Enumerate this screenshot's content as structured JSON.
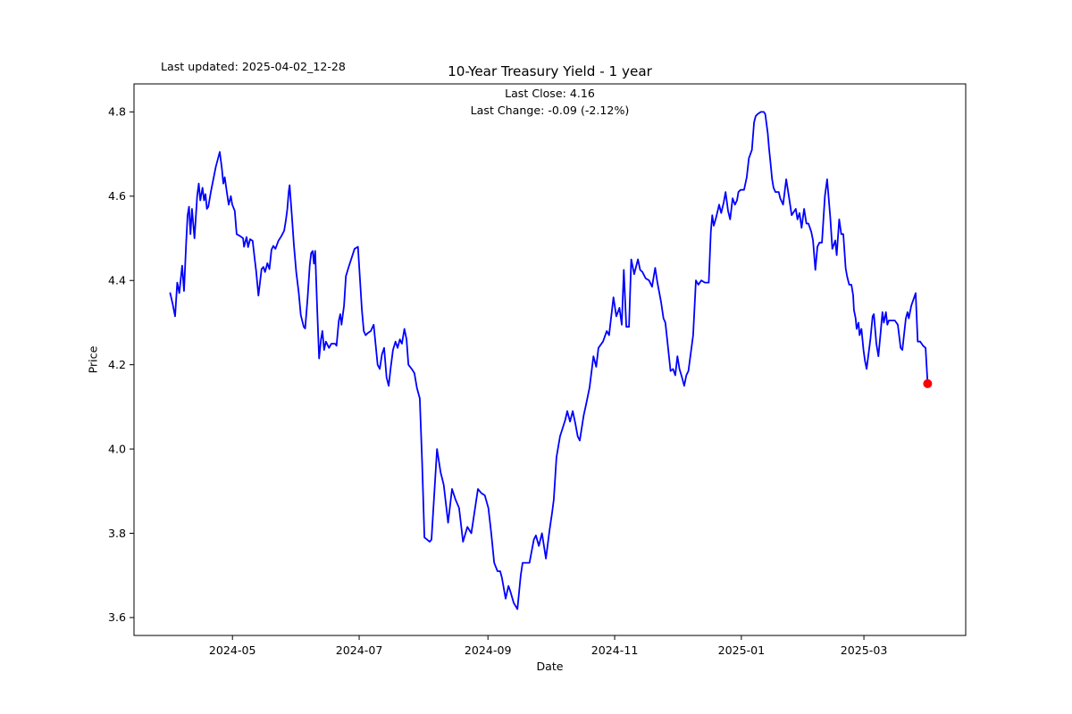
{
  "header": {
    "last_updated": "Last updated: 2025-04-02_12-28",
    "title": "10-Year Treasury Yield - 1 year",
    "subtitle_close": "Last Close: 4.16",
    "subtitle_change": "Last Change: -0.09 (-2.12%)"
  },
  "chart_data": {
    "type": "line",
    "title": "10-Year Treasury Yield - 1 year",
    "xlabel": "Date",
    "ylabel": "Price",
    "last_close": 4.16,
    "last_change": "-0.09 (-2.12%)",
    "line_color": "#0000ff",
    "last_point_color": "#ff0000",
    "background": "#ffffff",
    "grid": false,
    "legend": false,
    "x_unit": "days since 2024-04-01",
    "x_start_date": "2024-04-01",
    "xlim_days": [
      -17.4,
      383.0
    ],
    "ylim": [
      3.5575,
      4.8665
    ],
    "yticks": [
      {
        "v": 3.6,
        "label": "3.6"
      },
      {
        "v": 3.8,
        "label": "3.8"
      },
      {
        "v": 4.0,
        "label": "4.0"
      },
      {
        "v": 4.2,
        "label": "4.2"
      },
      {
        "v": 4.4,
        "label": "4.4"
      },
      {
        "v": 4.6,
        "label": "4.6"
      },
      {
        "v": 4.8,
        "label": "4.8"
      }
    ],
    "xticks": [
      {
        "d": 30,
        "label": "2024-05"
      },
      {
        "d": 91,
        "label": "2024-07"
      },
      {
        "d": 153,
        "label": "2024-09"
      },
      {
        "d": 214,
        "label": "2024-11"
      },
      {
        "d": 275,
        "label": "2025-01"
      },
      {
        "d": 334,
        "label": "2025-03"
      }
    ],
    "points": [
      [
        0,
        4.37
      ],
      [
        1.2,
        4.345
      ],
      [
        2.4,
        4.315
      ],
      [
        3.4,
        4.395
      ],
      [
        4.4,
        4.37
      ],
      [
        5.8,
        4.435
      ],
      [
        6.7,
        4.375
      ],
      [
        7.7,
        4.49
      ],
      [
        8.4,
        4.555
      ],
      [
        9.1,
        4.575
      ],
      [
        9.8,
        4.51
      ],
      [
        10.5,
        4.57
      ],
      [
        11.7,
        4.5
      ],
      [
        13,
        4.6
      ],
      [
        13.8,
        4.63
      ],
      [
        14.5,
        4.59
      ],
      [
        15.6,
        4.62
      ],
      [
        16.3,
        4.59
      ],
      [
        17,
        4.605
      ],
      [
        17.7,
        4.57
      ],
      [
        18.4,
        4.575
      ],
      [
        19.6,
        4.61
      ],
      [
        22,
        4.67
      ],
      [
        23.9,
        4.705
      ],
      [
        24.9,
        4.665
      ],
      [
        25.6,
        4.63
      ],
      [
        26.3,
        4.645
      ],
      [
        27.3,
        4.61
      ],
      [
        28.2,
        4.58
      ],
      [
        29.2,
        4.6
      ],
      [
        29.9,
        4.58
      ],
      [
        31.1,
        4.565
      ],
      [
        32,
        4.51
      ],
      [
        33.8,
        4.505
      ],
      [
        35.1,
        4.5
      ],
      [
        35.6,
        4.48
      ],
      [
        36.8,
        4.503
      ],
      [
        37.5,
        4.479
      ],
      [
        38.5,
        4.498
      ],
      [
        39.7,
        4.494
      ],
      [
        40.6,
        4.455
      ],
      [
        41.4,
        4.423
      ],
      [
        42.5,
        4.364
      ],
      [
        44,
        4.427
      ],
      [
        44.9,
        4.432
      ],
      [
        45.7,
        4.42
      ],
      [
        46.8,
        4.441
      ],
      [
        47.8,
        4.427
      ],
      [
        48.8,
        4.473
      ],
      [
        49.7,
        4.482
      ],
      [
        50.7,
        4.475
      ],
      [
        52.1,
        4.494
      ],
      [
        53.5,
        4.505
      ],
      [
        54.9,
        4.518
      ],
      [
        55.7,
        4.543
      ],
      [
        56.4,
        4.569
      ],
      [
        57.1,
        4.611
      ],
      [
        57.5,
        4.626
      ],
      [
        58.6,
        4.554
      ],
      [
        59.6,
        4.484
      ],
      [
        60.7,
        4.42
      ],
      [
        61.9,
        4.371
      ],
      [
        62.9,
        4.318
      ],
      [
        64.3,
        4.29
      ],
      [
        65,
        4.286
      ],
      [
        66.2,
        4.36
      ],
      [
        67.2,
        4.435
      ],
      [
        67.9,
        4.465
      ],
      [
        68.6,
        4.47
      ],
      [
        69.2,
        4.44
      ],
      [
        69.8,
        4.47
      ],
      [
        70.8,
        4.33
      ],
      [
        71.7,
        4.215
      ],
      [
        72.6,
        4.26
      ],
      [
        73.3,
        4.28
      ],
      [
        74.1,
        4.235
      ],
      [
        75,
        4.255
      ],
      [
        76.5,
        4.24
      ],
      [
        77.6,
        4.25
      ],
      [
        79.4,
        4.25
      ],
      [
        80.1,
        4.245
      ],
      [
        81.2,
        4.305
      ],
      [
        81.9,
        4.32
      ],
      [
        82.5,
        4.295
      ],
      [
        83.7,
        4.34
      ],
      [
        84.6,
        4.41
      ],
      [
        85.8,
        4.43
      ],
      [
        88.8,
        4.475
      ],
      [
        90.4,
        4.48
      ],
      [
        92.3,
        4.33
      ],
      [
        93.2,
        4.28
      ],
      [
        94.1,
        4.27
      ],
      [
        95.1,
        4.275
      ],
      [
        96.6,
        4.28
      ],
      [
        98,
        4.295
      ],
      [
        99.9,
        4.2
      ],
      [
        100.9,
        4.19
      ],
      [
        102,
        4.225
      ],
      [
        103,
        4.24
      ],
      [
        104.2,
        4.17
      ],
      [
        105.2,
        4.15
      ],
      [
        106.1,
        4.19
      ],
      [
        107.3,
        4.235
      ],
      [
        108.5,
        4.255
      ],
      [
        109.5,
        4.24
      ],
      [
        110.6,
        4.26
      ],
      [
        111.6,
        4.25
      ],
      [
        112.8,
        4.285
      ],
      [
        113.8,
        4.26
      ],
      [
        114.7,
        4.2
      ],
      [
        116.3,
        4.19
      ],
      [
        117.6,
        4.18
      ],
      [
        118.8,
        4.145
      ],
      [
        120.2,
        4.12
      ],
      [
        121.3,
        3.97
      ],
      [
        122.4,
        3.79
      ],
      [
        123.7,
        3.785
      ],
      [
        124.9,
        3.78
      ],
      [
        125.8,
        3.785
      ],
      [
        128.5,
        4.0
      ],
      [
        130.2,
        3.945
      ],
      [
        131.7,
        3.915
      ],
      [
        133.8,
        3.825
      ],
      [
        135.7,
        3.905
      ],
      [
        137.4,
        3.88
      ],
      [
        139.1,
        3.86
      ],
      [
        141,
        3.78
      ],
      [
        143.1,
        3.815
      ],
      [
        145,
        3.8
      ],
      [
        148.2,
        3.905
      ],
      [
        149.9,
        3.895
      ],
      [
        151.5,
        3.89
      ],
      [
        153.2,
        3.86
      ],
      [
        154.6,
        3.8
      ],
      [
        156,
        3.73
      ],
      [
        157.6,
        3.71
      ],
      [
        158.9,
        3.71
      ],
      [
        159.7,
        3.695
      ],
      [
        161.5,
        3.645
      ],
      [
        162.9,
        3.675
      ],
      [
        163.9,
        3.66
      ],
      [
        165.4,
        3.635
      ],
      [
        167.2,
        3.62
      ],
      [
        168.8,
        3.7
      ],
      [
        169.7,
        3.73
      ],
      [
        171.4,
        3.73
      ],
      [
        173,
        3.73
      ],
      [
        175.1,
        3.785
      ],
      [
        176.1,
        3.795
      ],
      [
        177.5,
        3.77
      ],
      [
        179,
        3.8
      ],
      [
        180.9,
        3.74
      ],
      [
        182.6,
        3.805
      ],
      [
        183.9,
        3.85
      ],
      [
        184.7,
        3.88
      ],
      [
        186,
        3.98
      ],
      [
        187.7,
        4.03
      ],
      [
        189,
        4.05
      ],
      [
        190.3,
        4.07
      ],
      [
        191.2,
        4.09
      ],
      [
        192.5,
        4.065
      ],
      [
        193.8,
        4.09
      ],
      [
        195.1,
        4.06
      ],
      [
        196.2,
        4.03
      ],
      [
        197.2,
        4.02
      ],
      [
        199.1,
        4.08
      ],
      [
        200.2,
        4.105
      ],
      [
        201.9,
        4.145
      ],
      [
        203.8,
        4.22
      ],
      [
        205.1,
        4.195
      ],
      [
        206.2,
        4.24
      ],
      [
        208.4,
        4.255
      ],
      [
        210.2,
        4.28
      ],
      [
        211.3,
        4.27
      ],
      [
        213.4,
        4.36
      ],
      [
        214.8,
        4.315
      ],
      [
        216.3,
        4.335
      ],
      [
        217.4,
        4.295
      ],
      [
        218.4,
        4.425
      ],
      [
        219.6,
        4.29
      ],
      [
        220.9,
        4.29
      ],
      [
        222,
        4.45
      ],
      [
        223.4,
        4.415
      ],
      [
        225.2,
        4.45
      ],
      [
        226.3,
        4.425
      ],
      [
        227.4,
        4.42
      ],
      [
        228.9,
        4.405
      ],
      [
        230.6,
        4.4
      ],
      [
        232,
        4.385
      ],
      [
        233.5,
        4.43
      ],
      [
        234.6,
        4.395
      ],
      [
        236.3,
        4.35
      ],
      [
        237.5,
        4.31
      ],
      [
        238.4,
        4.3
      ],
      [
        239.2,
        4.265
      ],
      [
        240.9,
        4.185
      ],
      [
        242.1,
        4.19
      ],
      [
        243.2,
        4.175
      ],
      [
        244.2,
        4.22
      ],
      [
        245.2,
        4.19
      ],
      [
        246.4,
        4.17
      ],
      [
        247.5,
        4.15
      ],
      [
        248.5,
        4.175
      ],
      [
        249.5,
        4.185
      ],
      [
        251.8,
        4.27
      ],
      [
        253.1,
        4.4
      ],
      [
        254.3,
        4.39
      ],
      [
        255.7,
        4.4
      ],
      [
        257.4,
        4.395
      ],
      [
        259.3,
        4.395
      ],
      [
        260.3,
        4.515
      ],
      [
        261,
        4.555
      ],
      [
        261.7,
        4.53
      ],
      [
        262.9,
        4.55
      ],
      [
        264.3,
        4.58
      ],
      [
        265.3,
        4.56
      ],
      [
        266.5,
        4.585
      ],
      [
        267.4,
        4.61
      ],
      [
        268.6,
        4.565
      ],
      [
        269.6,
        4.545
      ],
      [
        270.8,
        4.595
      ],
      [
        271.9,
        4.58
      ],
      [
        272.9,
        4.59
      ],
      [
        273.6,
        4.61
      ],
      [
        274.6,
        4.615
      ],
      [
        276.3,
        4.615
      ],
      [
        277.6,
        4.645
      ],
      [
        278.6,
        4.69
      ],
      [
        280.1,
        4.71
      ],
      [
        281.1,
        4.775
      ],
      [
        281.9,
        4.79
      ],
      [
        282.9,
        4.795
      ],
      [
        284.4,
        4.8
      ],
      [
        285.8,
        4.8
      ],
      [
        286.5,
        4.795
      ],
      [
        287.7,
        4.75
      ],
      [
        288.3,
        4.715
      ],
      [
        289.1,
        4.675
      ],
      [
        289.8,
        4.64
      ],
      [
        290.5,
        4.62
      ],
      [
        291.4,
        4.61
      ],
      [
        293,
        4.61
      ],
      [
        293.7,
        4.595
      ],
      [
        295.1,
        4.58
      ],
      [
        296.6,
        4.64
      ],
      [
        298,
        4.595
      ],
      [
        299.2,
        4.555
      ],
      [
        301.2,
        4.57
      ],
      [
        302,
        4.545
      ],
      [
        303,
        4.56
      ],
      [
        304,
        4.525
      ],
      [
        305.2,
        4.57
      ],
      [
        306.3,
        4.535
      ],
      [
        307.3,
        4.535
      ],
      [
        308.7,
        4.515
      ],
      [
        309.5,
        4.495
      ],
      [
        310.6,
        4.425
      ],
      [
        311.6,
        4.48
      ],
      [
        312.6,
        4.49
      ],
      [
        313.8,
        4.49
      ],
      [
        315.2,
        4.6
      ],
      [
        316.3,
        4.64
      ],
      [
        317.8,
        4.55
      ],
      [
        318.8,
        4.475
      ],
      [
        320.2,
        4.495
      ],
      [
        320.9,
        4.46
      ],
      [
        322.1,
        4.545
      ],
      [
        323.1,
        4.51
      ],
      [
        324.1,
        4.51
      ],
      [
        325.2,
        4.43
      ],
      [
        325.9,
        4.41
      ],
      [
        326.9,
        4.39
      ],
      [
        328,
        4.39
      ],
      [
        328.8,
        4.365
      ],
      [
        329.2,
        4.33
      ],
      [
        330,
        4.31
      ],
      [
        330.5,
        4.285
      ],
      [
        331.4,
        4.3
      ],
      [
        331.9,
        4.27
      ],
      [
        332.8,
        4.285
      ],
      [
        333.8,
        4.235
      ],
      [
        334.5,
        4.21
      ],
      [
        335.3,
        4.19
      ],
      [
        337.1,
        4.26
      ],
      [
        338.2,
        4.315
      ],
      [
        338.8,
        4.32
      ],
      [
        340,
        4.25
      ],
      [
        341,
        4.22
      ],
      [
        342,
        4.275
      ],
      [
        342.9,
        4.325
      ],
      [
        343.6,
        4.3
      ],
      [
        344.6,
        4.325
      ],
      [
        345.3,
        4.295
      ],
      [
        346,
        4.305
      ],
      [
        347.3,
        4.305
      ],
      [
        348.9,
        4.305
      ],
      [
        350.3,
        4.295
      ],
      [
        351.7,
        4.24
      ],
      [
        352.5,
        4.235
      ],
      [
        354.2,
        4.31
      ],
      [
        355,
        4.325
      ],
      [
        355.6,
        4.31
      ],
      [
        356.8,
        4.34
      ],
      [
        358.9,
        4.37
      ],
      [
        359.9,
        4.255
      ],
      [
        361.1,
        4.255
      ],
      [
        362.5,
        4.245
      ],
      [
        363.7,
        4.24
      ],
      [
        364.7,
        4.155
      ]
    ]
  }
}
